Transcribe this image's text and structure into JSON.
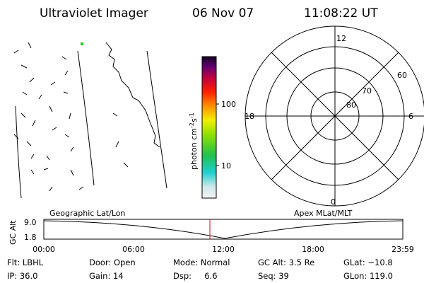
{
  "header": {
    "title": "Ultraviolet Imager",
    "date": "06 Nov 07",
    "time": "11:08:22 UT"
  },
  "colorbar": {
    "ticks": [
      100,
      10
    ],
    "label": {
      "text": "photon cm",
      "exp1": "-2",
      "unit2": "s",
      "exp2": "-1"
    }
  },
  "polar": {
    "mlt_labels": [
      12,
      6,
      18,
      0
    ],
    "mlat_labels": [
      60,
      70,
      80
    ]
  },
  "altitude_plot": {
    "left_title": "Geographic Lat/Lon",
    "right_title": "Apex MLat/MLT",
    "ylabel": "GC Alt",
    "yticks": [
      "9.0",
      "1.8"
    ],
    "xticks": [
      "00:00",
      "06:00",
      "12:00",
      "18:00",
      "23:59"
    ]
  },
  "info": [
    [
      "Flt: LBHL",
      "Door: Open",
      "Mode: Normal",
      "GC Alt: 3.5 Re",
      "GLat: −10.8"
    ],
    [
      "IP: 36.0",
      "Gain: 14",
      "Dsp:     6.6",
      "Seq: 39",
      "GLon: 119.0"
    ]
  ]
}
